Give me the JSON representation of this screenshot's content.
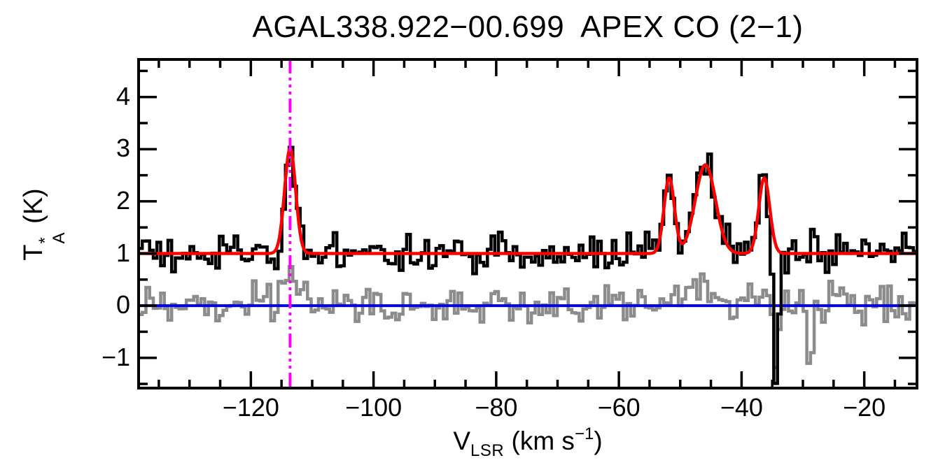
{
  "title": "AGAL338.922−00.699  APEX CO (2−1)",
  "axes": {
    "x": {
      "label_v": "V",
      "label_sub": "LSR",
      "label_mid": " (km s",
      "label_sup": "−1",
      "label_end": ")",
      "tick_labels": [
        "−120",
        "−100",
        "−80",
        "−60",
        "−40",
        "−20"
      ]
    },
    "y": {
      "label_t": "T",
      "label_sup": "*",
      "label_sub": "A",
      "label_rest": " (K)",
      "tick_labels": [
        "−1",
        "0",
        "1",
        "2",
        "3",
        "4"
      ]
    }
  },
  "chart_data": {
    "type": "line",
    "subtype": "radio-spectrum-with-gaussian-fit",
    "title": "AGAL338.922−00.699  APEX CO (2−1)",
    "xlabel": "VLSR (km s−1)",
    "ylabel": "TA* (K)",
    "x_range": [
      -138.3,
      -11.4
    ],
    "y_range": [
      -1.58,
      4.72
    ],
    "x_ticks": [
      -120,
      -100,
      -80,
      -60,
      -40,
      -20
    ],
    "x_minor_step": 5,
    "y_ticks": [
      -1,
      0,
      1,
      2,
      3,
      4
    ],
    "y_minor_step": 0.5,
    "grid": false,
    "legend": "none",
    "channels": 212,
    "noise_seed": 20240615,
    "series": [
      {
        "name": "observed-spectrum",
        "style": "histogram",
        "color": "#000000",
        "baseline_offset": 1.0,
        "noise_sigma": 0.17,
        "features": [
          {
            "type": "gauss",
            "center": -113.6,
            "amp": 2.05,
            "sigma": 0.9
          },
          {
            "type": "gauss",
            "center": -51.8,
            "amp": 1.5,
            "sigma": 0.85
          },
          {
            "type": "gauss",
            "center": -45.9,
            "amp": 1.75,
            "sigma": 1.65
          },
          {
            "type": "gauss",
            "center": -36.3,
            "amp": 1.5,
            "sigma": 0.9
          },
          {
            "type": "gauss",
            "center": -34.45,
            "amp": -2.45,
            "sigma": 0.5
          }
        ]
      },
      {
        "name": "residual-spectrum",
        "style": "histogram",
        "color": "#8c8c8c",
        "baseline_offset": 0.0,
        "noise_sigma": 0.19,
        "features": [
          {
            "type": "gauss",
            "center": -113.6,
            "amp": 0.6,
            "sigma": 0.9
          },
          {
            "type": "gauss",
            "center": -51.8,
            "amp": 0.3,
            "sigma": 0.9
          },
          {
            "type": "gauss",
            "center": -45.9,
            "amp": 0.4,
            "sigma": 1.7
          },
          {
            "type": "gauss",
            "center": -36.3,
            "amp": 0.3,
            "sigma": 0.9
          },
          {
            "type": "gauss",
            "center": -34.5,
            "amp": -1.0,
            "sigma": 0.5
          },
          {
            "type": "gauss",
            "center": -28.9,
            "amp": -1.1,
            "sigma": 0.35
          }
        ]
      }
    ],
    "fit": {
      "name": "gaussian-fit",
      "color": "#ff0000",
      "baseline_offset": 1.0,
      "components": [
        {
          "center": -113.6,
          "amp": 2.02,
          "sigma": 0.9,
          "peak_K": 3.02
        },
        {
          "center": -51.8,
          "amp": 1.45,
          "sigma": 0.85,
          "peak_K": 2.45
        },
        {
          "center": -45.9,
          "amp": 1.7,
          "sigma": 1.65,
          "peak_K": 2.7
        },
        {
          "center": -36.3,
          "amp": 1.45,
          "sigma": 0.9,
          "peak_K": 2.45
        }
      ]
    },
    "zero_line": {
      "color": "#0000ee",
      "y": 0
    },
    "marker_line": {
      "color": "#ff00ff",
      "x": -113.6,
      "style": "dash-dot-dot-dot"
    }
  }
}
